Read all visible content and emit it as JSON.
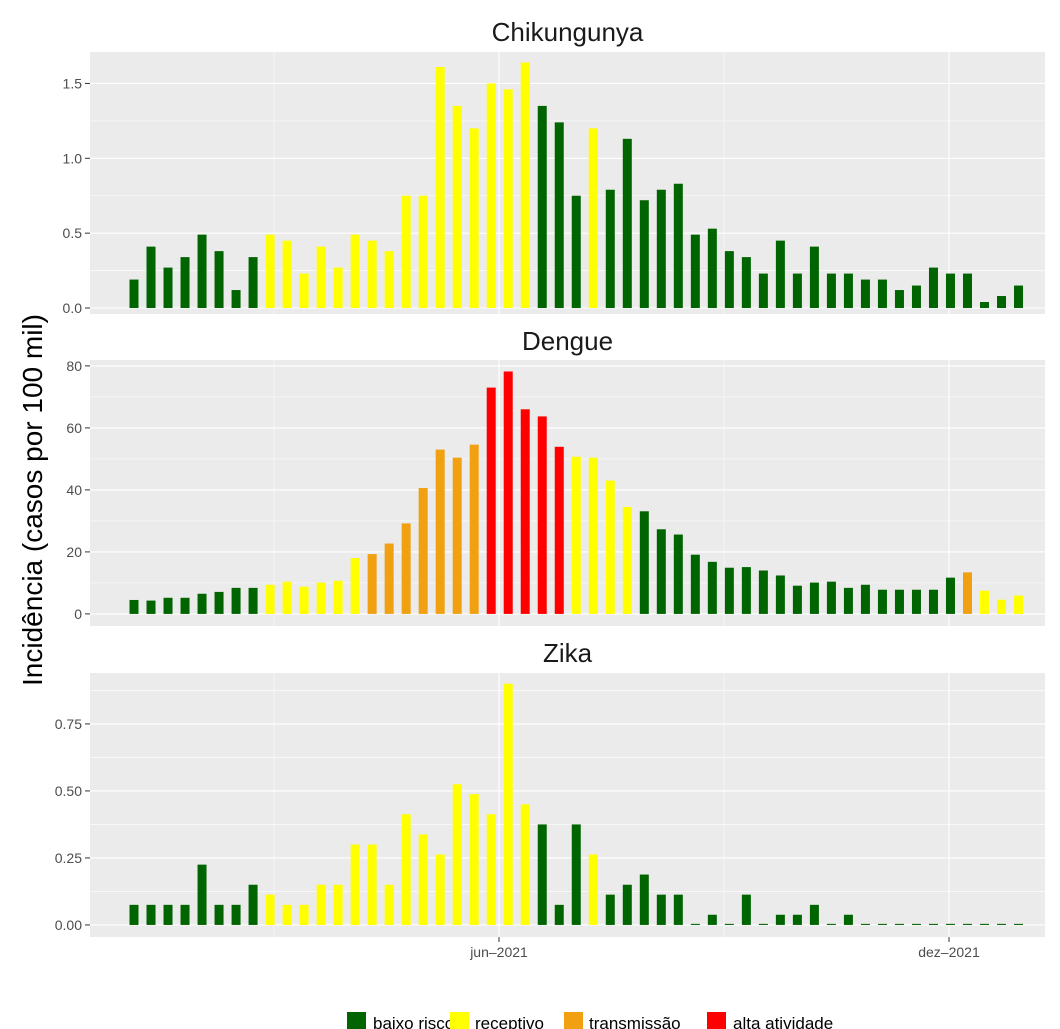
{
  "y_axis_label": "Incidência (casos por 100 mil)",
  "x_ticks": [
    "jun–2021",
    "dez–2021"
  ],
  "legend": [
    {
      "key": "baixo_risco",
      "label": "baixo risco",
      "color": "#006400"
    },
    {
      "key": "receptivo",
      "label": "receptivo",
      "color": "#FFFF00"
    },
    {
      "key": "transmissao",
      "label": "transmissão",
      "color": "#F0A010"
    },
    {
      "key": "alta_atividade",
      "label": "alta atividade",
      "color": "#FF0000"
    }
  ],
  "chart_data": [
    {
      "type": "bar",
      "title": "Chikungunya",
      "ylim": [
        -0.04,
        1.71
      ],
      "yticks": [
        0,
        0.5,
        1.0,
        1.5
      ],
      "ytick_labels": [
        "0.0",
        "0.5",
        "1.0",
        "1.5"
      ],
      "values": [
        0.19,
        0.41,
        0.27,
        0.34,
        0.49,
        0.38,
        0.12,
        0.34,
        0.49,
        0.45,
        0.23,
        0.41,
        0.27,
        0.49,
        0.45,
        0.38,
        0.75,
        0.75,
        1.61,
        1.35,
        1.2,
        1.5,
        1.46,
        1.64,
        1.35,
        1.24,
        0.75,
        1.2,
        0.79,
        1.13,
        0.72,
        0.79,
        0.83,
        0.49,
        0.53,
        0.38,
        0.34,
        0.23,
        0.45,
        0.23,
        0.41,
        0.23,
        0.23,
        0.19,
        0.19,
        0.12,
        0.15,
        0.27,
        0.23,
        0.23,
        0.04,
        0.08,
        0.15
      ],
      "levels": [
        "baixo_risco",
        "baixo_risco",
        "baixo_risco",
        "baixo_risco",
        "baixo_risco",
        "baixo_risco",
        "baixo_risco",
        "baixo_risco",
        "receptivo",
        "receptivo",
        "receptivo",
        "receptivo",
        "receptivo",
        "receptivo",
        "receptivo",
        "receptivo",
        "receptivo",
        "receptivo",
        "receptivo",
        "receptivo",
        "receptivo",
        "receptivo",
        "receptivo",
        "receptivo",
        "baixo_risco",
        "baixo_risco",
        "baixo_risco",
        "receptivo",
        "baixo_risco",
        "baixo_risco",
        "baixo_risco",
        "baixo_risco",
        "baixo_risco",
        "baixo_risco",
        "baixo_risco",
        "baixo_risco",
        "baixo_risco",
        "baixo_risco",
        "baixo_risco",
        "baixo_risco",
        "baixo_risco",
        "baixo_risco",
        "baixo_risco",
        "baixo_risco",
        "baixo_risco",
        "baixo_risco",
        "baixo_risco",
        "baixo_risco",
        "baixo_risco",
        "baixo_risco",
        "baixo_risco",
        "baixo_risco",
        "baixo_risco"
      ]
    },
    {
      "type": "bar",
      "title": "Dengue",
      "ylim": [
        -3.9,
        81.9
      ],
      "yticks": [
        0,
        20,
        40,
        60,
        80
      ],
      "ytick_labels": [
        "0",
        "20",
        "40",
        "60",
        "80"
      ],
      "values": [
        4.5,
        4.3,
        5.2,
        5.2,
        6.5,
        7.1,
        8.4,
        8.4,
        9.4,
        10.4,
        8.8,
        10.1,
        10.7,
        18,
        19.3,
        22.7,
        29.2,
        40.6,
        53,
        50.4,
        54.6,
        73,
        78.2,
        66,
        63.7,
        53.9,
        50.7,
        50.4,
        43,
        34.5,
        33.1,
        27.3,
        25.6,
        19.1,
        16.8,
        14.9,
        15.1,
        14,
        12.4,
        9.1,
        10.1,
        10.4,
        8.4,
        9.4,
        7.8,
        7.8,
        7.8,
        7.8,
        11.7,
        13.4,
        7.5,
        4.6,
        5.9
      ],
      "levels": [
        "baixo_risco",
        "baixo_risco",
        "baixo_risco",
        "baixo_risco",
        "baixo_risco",
        "baixo_risco",
        "baixo_risco",
        "baixo_risco",
        "receptivo",
        "receptivo",
        "receptivo",
        "receptivo",
        "receptivo",
        "receptivo",
        "transmissao",
        "transmissao",
        "transmissao",
        "transmissao",
        "transmissao",
        "transmissao",
        "transmissao",
        "alta_atividade",
        "alta_atividade",
        "alta_atividade",
        "alta_atividade",
        "alta_atividade",
        "receptivo",
        "receptivo",
        "receptivo",
        "receptivo",
        "baixo_risco",
        "baixo_risco",
        "baixo_risco",
        "baixo_risco",
        "baixo_risco",
        "baixo_risco",
        "baixo_risco",
        "baixo_risco",
        "baixo_risco",
        "baixo_risco",
        "baixo_risco",
        "baixo_risco",
        "baixo_risco",
        "baixo_risco",
        "baixo_risco",
        "baixo_risco",
        "baixo_risco",
        "baixo_risco",
        "baixo_risco",
        "transmissao",
        "receptivo",
        "receptivo",
        "receptivo"
      ]
    },
    {
      "type": "bar",
      "title": "Zika",
      "ylim": [
        -0.045,
        0.94
      ],
      "yticks": [
        0,
        0.25,
        0.5,
        0.75
      ],
      "ytick_labels": [
        "0.00",
        "0.25",
        "0.50",
        "0.75"
      ],
      "values": [
        0.075,
        0.075,
        0.075,
        0.075,
        0.225,
        0.075,
        0.075,
        0.15,
        0.113,
        0.075,
        0.075,
        0.15,
        0.15,
        0.3,
        0.3,
        0.15,
        0.413,
        0.338,
        0.263,
        0.525,
        0.488,
        0.413,
        0.9,
        0.45,
        0.375,
        0.075,
        0.375,
        0.263,
        0.113,
        0.15,
        0.188,
        0.113,
        0.113,
        0.004,
        0.038,
        0.004,
        0.113,
        0.004,
        0.038,
        0.038,
        0.075,
        0.004,
        0.038,
        0.004,
        0.004,
        0.004,
        0.004,
        0.004,
        0.004,
        0.004,
        0.004,
        0.004,
        0.004
      ],
      "levels": [
        "baixo_risco",
        "baixo_risco",
        "baixo_risco",
        "baixo_risco",
        "baixo_risco",
        "baixo_risco",
        "baixo_risco",
        "baixo_risco",
        "receptivo",
        "receptivo",
        "receptivo",
        "receptivo",
        "receptivo",
        "receptivo",
        "receptivo",
        "receptivo",
        "receptivo",
        "receptivo",
        "receptivo",
        "receptivo",
        "receptivo",
        "receptivo",
        "receptivo",
        "receptivo",
        "baixo_risco",
        "baixo_risco",
        "baixo_risco",
        "receptivo",
        "baixo_risco",
        "baixo_risco",
        "baixo_risco",
        "baixo_risco",
        "baixo_risco",
        "baixo_risco",
        "baixo_risco",
        "baixo_risco",
        "baixo_risco",
        "baixo_risco",
        "baixo_risco",
        "baixo_risco",
        "baixo_risco",
        "baixo_risco",
        "baixo_risco",
        "baixo_risco",
        "baixo_risco",
        "baixo_risco",
        "baixo_risco",
        "baixo_risco",
        "baixo_risco",
        "baixo_risco",
        "baixo_risco",
        "baixo_risco",
        "baixo_risco"
      ]
    }
  ]
}
